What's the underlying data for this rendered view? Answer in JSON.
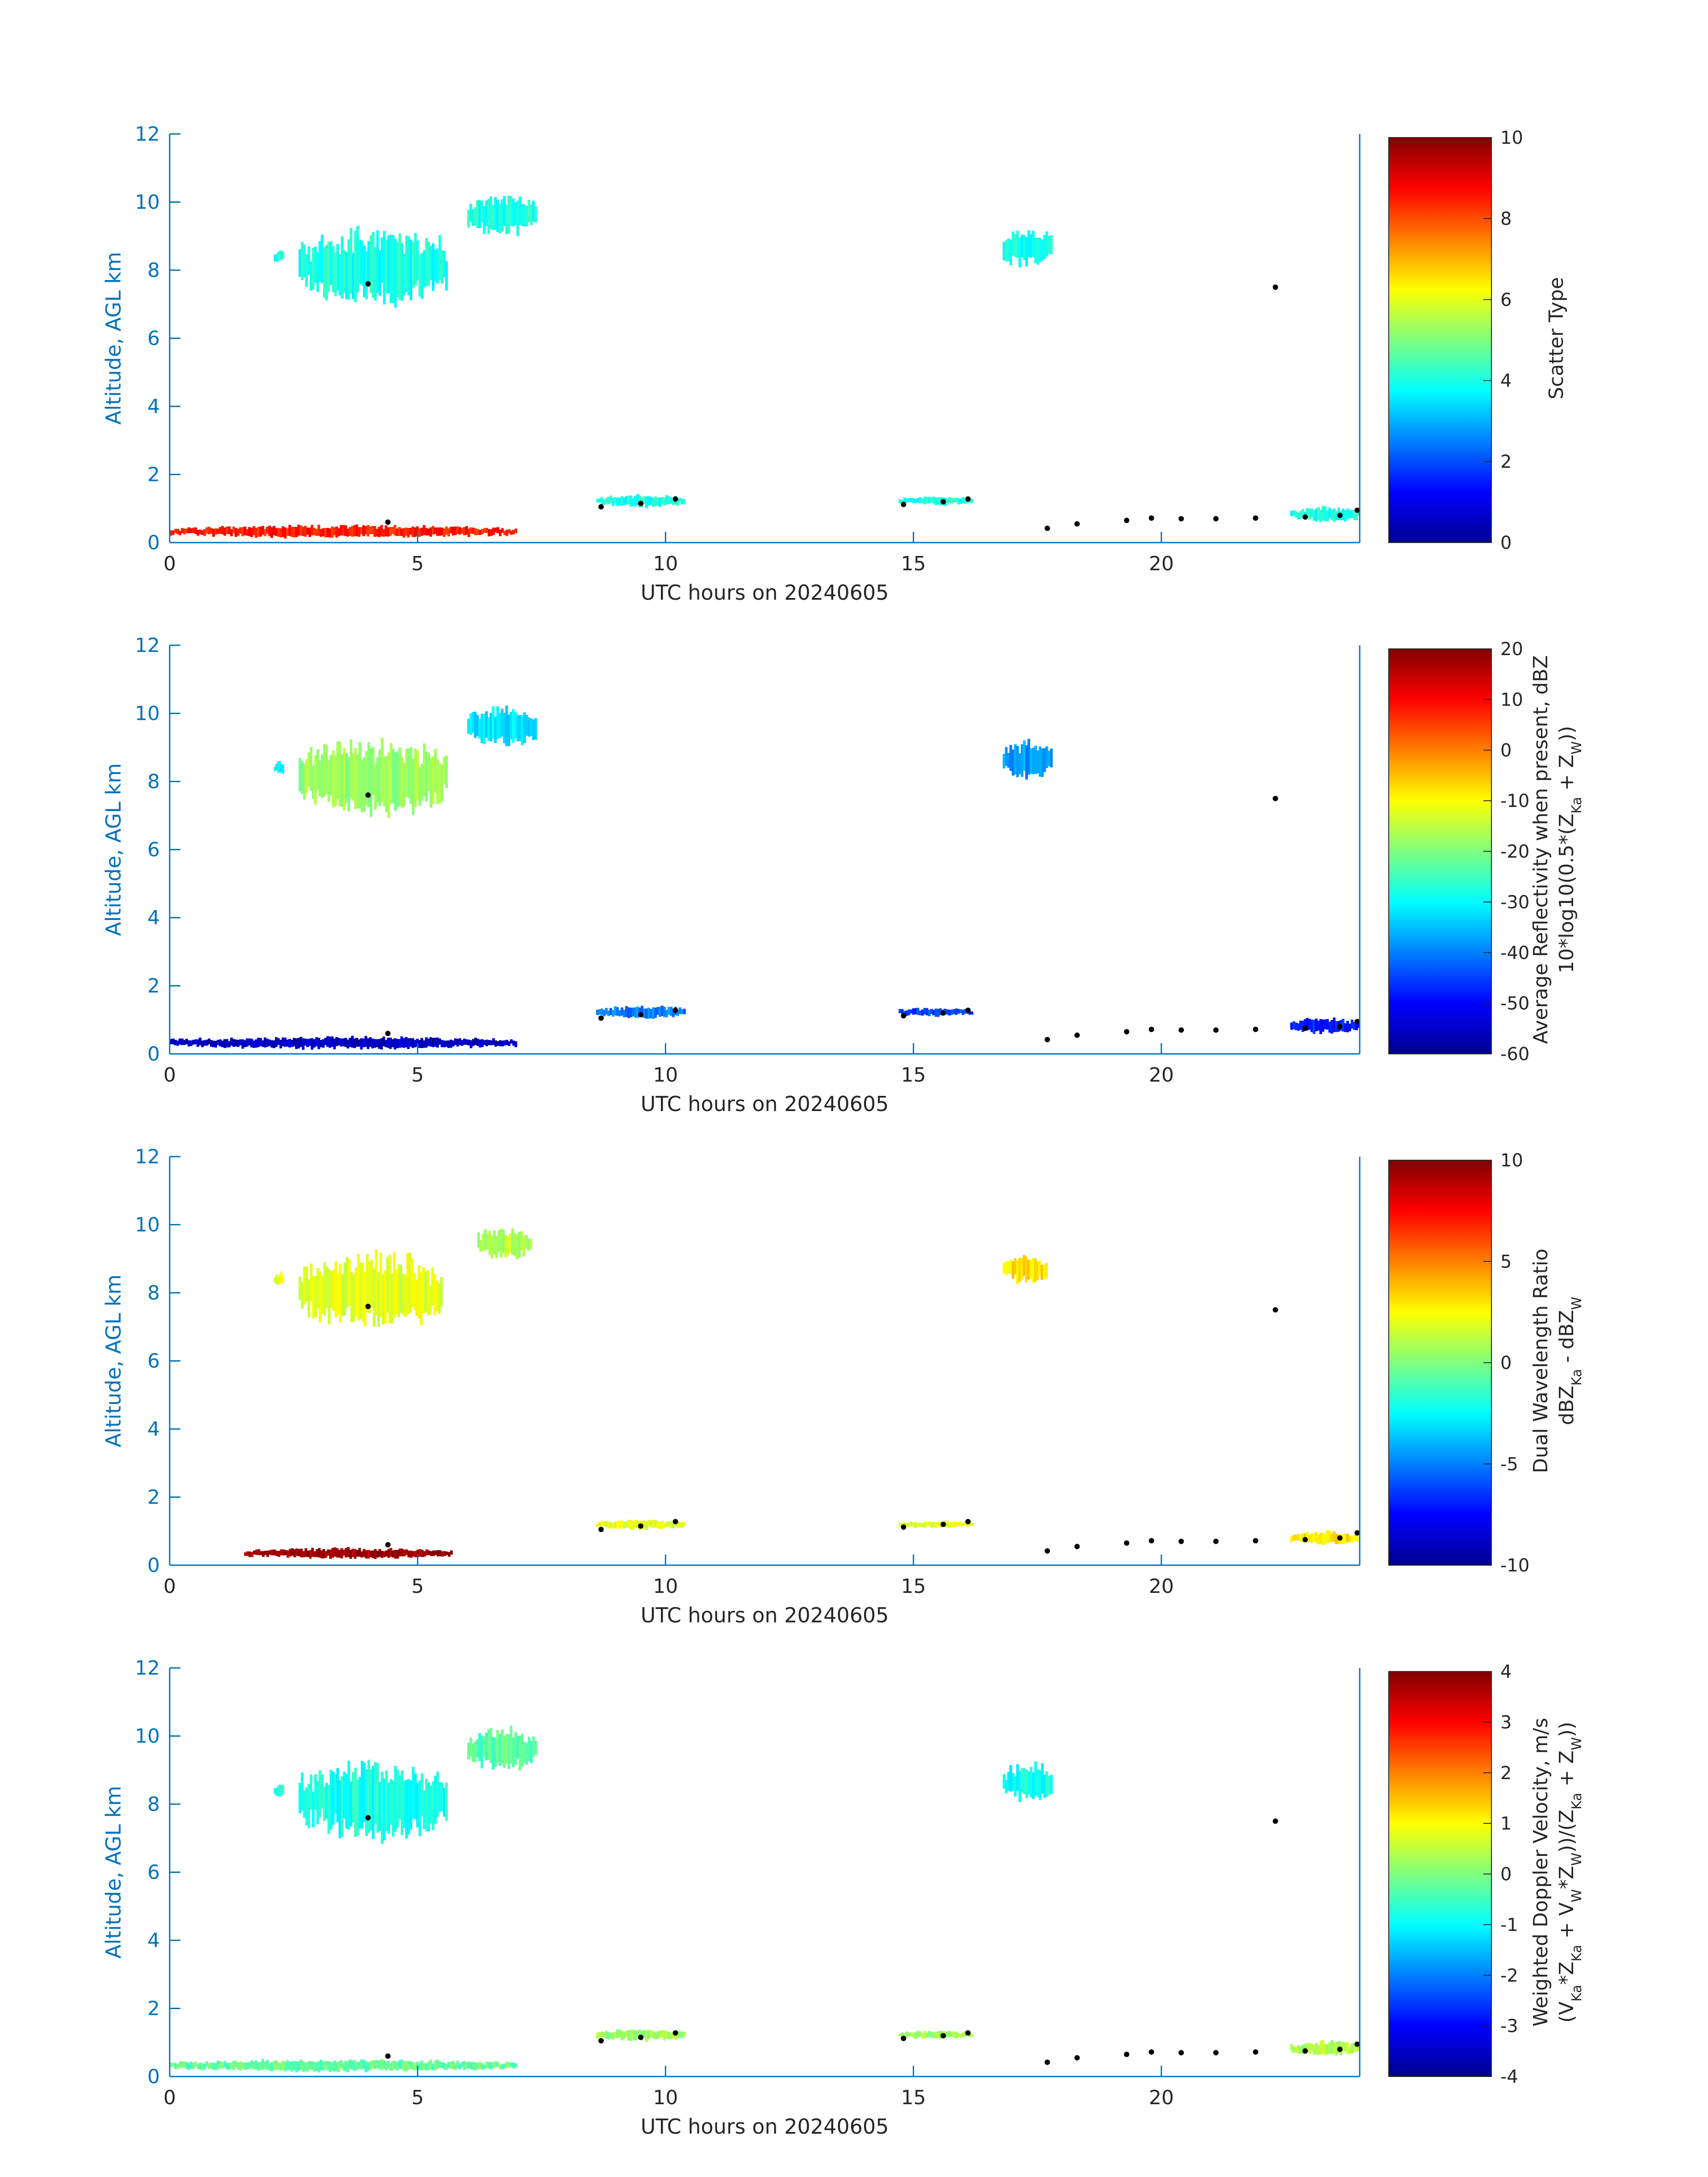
{
  "figure": {
    "colors": {
      "axis": "#0072BD",
      "text": "#262626",
      "cloud_base": "#000000",
      "background": "#ffffff"
    }
  },
  "chart_data": [
    {
      "type": "heatmap",
      "title": "",
      "xlabel": "UTC hours on 20240605",
      "ylabel": "Altitude, AGL km",
      "xlim": [
        0,
        24
      ],
      "ylim": [
        0,
        12
      ],
      "xticks": [
        "0",
        "5",
        "10",
        "15",
        "20"
      ],
      "yticks": [
        "0",
        "2",
        "4",
        "6",
        "8",
        "10",
        "12"
      ],
      "colorbar": {
        "label_lines": [
          "Scatter Type"
        ],
        "min": 0,
        "max": 10,
        "ticks": [
          "0",
          "2",
          "4",
          "6",
          "8",
          "10"
        ],
        "colormap": "jet"
      },
      "regions": [
        {
          "x0": 2.1,
          "x1": 2.3,
          "y0": 8.2,
          "y1": 8.6,
          "value": 4
        },
        {
          "x0": 2.6,
          "x1": 5.6,
          "y0": 7.0,
          "y1": 9.2,
          "value": 4
        },
        {
          "x0": 6.0,
          "x1": 7.4,
          "y0": 9.0,
          "y1": 10.2,
          "value": 4
        },
        {
          "x0": 16.8,
          "x1": 17.8,
          "y0": 8.1,
          "y1": 9.2,
          "value": 4
        },
        {
          "x0": 8.6,
          "x1": 10.4,
          "y0": 1.05,
          "y1": 1.4,
          "value": 4
        },
        {
          "x0": 14.7,
          "x1": 16.2,
          "y0": 1.1,
          "y1": 1.35,
          "value": 4
        },
        {
          "x0": 22.6,
          "x1": 24.0,
          "y0": 0.6,
          "y1": 1.05,
          "value": 4
        },
        {
          "x0": 0.0,
          "x1": 7.0,
          "y0": 0.15,
          "y1": 0.5,
          "value": 8.5
        }
      ],
      "cloud_base": [
        [
          4.0,
          7.6
        ],
        [
          4.4,
          0.6
        ],
        [
          8.7,
          1.05
        ],
        [
          9.5,
          1.15
        ],
        [
          10.2,
          1.28
        ],
        [
          14.8,
          1.12
        ],
        [
          15.6,
          1.2
        ],
        [
          16.1,
          1.28
        ],
        [
          17.7,
          0.42
        ],
        [
          18.3,
          0.55
        ],
        [
          19.3,
          0.65
        ],
        [
          19.8,
          0.72
        ],
        [
          20.4,
          0.7
        ],
        [
          21.1,
          0.7
        ],
        [
          21.9,
          0.72
        ],
        [
          22.3,
          7.5
        ],
        [
          22.9,
          0.75
        ],
        [
          23.6,
          0.8
        ],
        [
          23.95,
          0.95
        ]
      ]
    },
    {
      "type": "heatmap",
      "title": "",
      "xlabel": "UTC hours on 20240605",
      "ylabel": "Altitude, AGL km",
      "xlim": [
        0,
        24
      ],
      "ylim": [
        0,
        12
      ],
      "xticks": [
        "0",
        "5",
        "10",
        "15",
        "20"
      ],
      "yticks": [
        "0",
        "2",
        "4",
        "6",
        "8",
        "10",
        "12"
      ],
      "colorbar": {
        "label_lines": [
          "Average Reflectivity when present, dBZ",
          "10*log10(0.5*(Z",
          "Ka",
          " + Z",
          "W",
          "))"
        ],
        "min": -60,
        "max": 20,
        "ticks": [
          "-60",
          "-50",
          "-40",
          "-30",
          "-20",
          "-10",
          "0",
          "10",
          "20"
        ],
        "colormap": "jet"
      },
      "regions": [
        {
          "x0": 2.1,
          "x1": 2.3,
          "y0": 8.2,
          "y1": 8.6,
          "value": -30
        },
        {
          "x0": 2.6,
          "x1": 5.6,
          "y0": 7.0,
          "y1": 9.2,
          "value": -18
        },
        {
          "x0": 6.0,
          "x1": 7.4,
          "y0": 9.0,
          "y1": 10.2,
          "value": -32
        },
        {
          "x0": 16.8,
          "x1": 17.8,
          "y0": 8.1,
          "y1": 9.2,
          "value": -38
        },
        {
          "x0": 8.6,
          "x1": 10.4,
          "y0": 1.05,
          "y1": 1.4,
          "value": -40
        },
        {
          "x0": 14.7,
          "x1": 16.2,
          "y0": 1.1,
          "y1": 1.35,
          "value": -45
        },
        {
          "x0": 22.6,
          "x1": 24.0,
          "y0": 0.6,
          "y1": 1.05,
          "value": -48
        },
        {
          "x0": 0.0,
          "x1": 7.0,
          "y0": 0.15,
          "y1": 0.5,
          "value": -55
        }
      ],
      "cloud_base": [
        [
          4.0,
          7.6
        ],
        [
          4.4,
          0.6
        ],
        [
          8.7,
          1.05
        ],
        [
          9.5,
          1.15
        ],
        [
          10.2,
          1.28
        ],
        [
          14.8,
          1.12
        ],
        [
          15.6,
          1.2
        ],
        [
          16.1,
          1.28
        ],
        [
          17.7,
          0.42
        ],
        [
          18.3,
          0.55
        ],
        [
          19.3,
          0.65
        ],
        [
          19.8,
          0.72
        ],
        [
          20.4,
          0.7
        ],
        [
          21.1,
          0.7
        ],
        [
          21.9,
          0.72
        ],
        [
          22.3,
          7.5
        ],
        [
          22.9,
          0.75
        ],
        [
          23.6,
          0.8
        ],
        [
          23.95,
          0.95
        ]
      ]
    },
    {
      "type": "heatmap",
      "title": "",
      "xlabel": "UTC hours on 20240605",
      "ylabel": "Altitude, AGL km",
      "xlim": [
        0,
        24
      ],
      "ylim": [
        0,
        12
      ],
      "xticks": [
        "0",
        "5",
        "10",
        "15",
        "20"
      ],
      "yticks": [
        "0",
        "2",
        "4",
        "6",
        "8",
        "10",
        "12"
      ],
      "colorbar": {
        "label_lines": [
          "Dual Wavelength Ratio",
          "dBZ",
          "Ka",
          " - dBZ",
          "W"
        ],
        "min": -10,
        "max": 10,
        "ticks": [
          "-10",
          "-5",
          "0",
          "5",
          "10"
        ],
        "colormap": "jet"
      },
      "regions": [
        {
          "x0": 2.1,
          "x1": 2.3,
          "y0": 8.2,
          "y1": 8.6,
          "value": 2
        },
        {
          "x0": 2.6,
          "x1": 5.5,
          "y0": 7.0,
          "y1": 9.1,
          "value": 2
        },
        {
          "x0": 6.2,
          "x1": 7.3,
          "y0": 9.0,
          "y1": 9.9,
          "value": 1
        },
        {
          "x0": 16.8,
          "x1": 17.7,
          "y0": 8.3,
          "y1": 9.1,
          "value": 3
        },
        {
          "x0": 8.6,
          "x1": 10.4,
          "y0": 1.05,
          "y1": 1.35,
          "value": 2
        },
        {
          "x0": 14.7,
          "x1": 16.2,
          "y0": 1.1,
          "y1": 1.3,
          "value": 2
        },
        {
          "x0": 22.6,
          "x1": 24.0,
          "y0": 0.6,
          "y1": 1.0,
          "value": 3
        },
        {
          "x0": 1.5,
          "x1": 5.7,
          "y0": 0.2,
          "y1": 0.5,
          "value": 9.5
        }
      ],
      "cloud_base": [
        [
          4.0,
          7.6
        ],
        [
          4.4,
          0.6
        ],
        [
          8.7,
          1.05
        ],
        [
          9.5,
          1.15
        ],
        [
          10.2,
          1.28
        ],
        [
          14.8,
          1.12
        ],
        [
          15.6,
          1.2
        ],
        [
          16.1,
          1.28
        ],
        [
          17.7,
          0.42
        ],
        [
          18.3,
          0.55
        ],
        [
          19.3,
          0.65
        ],
        [
          19.8,
          0.72
        ],
        [
          20.4,
          0.7
        ],
        [
          21.1,
          0.7
        ],
        [
          21.9,
          0.72
        ],
        [
          22.3,
          7.5
        ],
        [
          22.9,
          0.75
        ],
        [
          23.6,
          0.8
        ],
        [
          23.95,
          0.95
        ]
      ]
    },
    {
      "type": "heatmap",
      "title": "",
      "xlabel": "UTC hours on 20240605",
      "ylabel": "Altitude, AGL km",
      "xlim": [
        0,
        24
      ],
      "ylim": [
        0,
        12
      ],
      "xticks": [
        "0",
        "5",
        "10",
        "15",
        "20"
      ],
      "yticks": [
        "0",
        "2",
        "4",
        "6",
        "8",
        "10",
        "12"
      ],
      "colorbar": {
        "label_lines": [
          "Weighted Doppler Velocity, m/s",
          "(V",
          "Ka",
          "*Z",
          "Ka",
          " + V",
          "W",
          "*Z",
          "W",
          "))/(Z",
          "Ka",
          " + Z",
          "W",
          "))"
        ],
        "min": -4,
        "max": 4,
        "ticks": [
          "-4",
          "-3",
          "-2",
          "-1",
          "0",
          "1",
          "2",
          "3",
          "4"
        ],
        "colormap": "jet"
      },
      "regions": [
        {
          "x0": 2.1,
          "x1": 2.3,
          "y0": 8.2,
          "y1": 8.6,
          "value": -0.6
        },
        {
          "x0": 2.6,
          "x1": 5.6,
          "y0": 7.0,
          "y1": 9.2,
          "value": -0.8
        },
        {
          "x0": 6.0,
          "x1": 7.4,
          "y0": 9.0,
          "y1": 10.2,
          "value": -0.3
        },
        {
          "x0": 16.8,
          "x1": 17.8,
          "y0": 8.1,
          "y1": 9.2,
          "value": -0.9
        },
        {
          "x0": 8.6,
          "x1": 10.4,
          "y0": 1.05,
          "y1": 1.4,
          "value": 0.2
        },
        {
          "x0": 14.7,
          "x1": 16.2,
          "y0": 1.1,
          "y1": 1.35,
          "value": 0.3
        },
        {
          "x0": 22.6,
          "x1": 24.0,
          "y0": 0.6,
          "y1": 1.05,
          "value": 0.4
        },
        {
          "x0": 0.0,
          "x1": 7.0,
          "y0": 0.15,
          "y1": 0.5,
          "value": -0.2
        }
      ],
      "cloud_base": [
        [
          4.0,
          7.6
        ],
        [
          4.4,
          0.6
        ],
        [
          8.7,
          1.05
        ],
        [
          9.5,
          1.15
        ],
        [
          10.2,
          1.28
        ],
        [
          14.8,
          1.12
        ],
        [
          15.6,
          1.2
        ],
        [
          16.1,
          1.28
        ],
        [
          17.7,
          0.42
        ],
        [
          18.3,
          0.55
        ],
        [
          19.3,
          0.65
        ],
        [
          19.8,
          0.72
        ],
        [
          20.4,
          0.7
        ],
        [
          21.1,
          0.7
        ],
        [
          21.9,
          0.72
        ],
        [
          22.3,
          7.5
        ],
        [
          22.9,
          0.75
        ],
        [
          23.6,
          0.8
        ],
        [
          23.95,
          0.95
        ]
      ]
    }
  ]
}
